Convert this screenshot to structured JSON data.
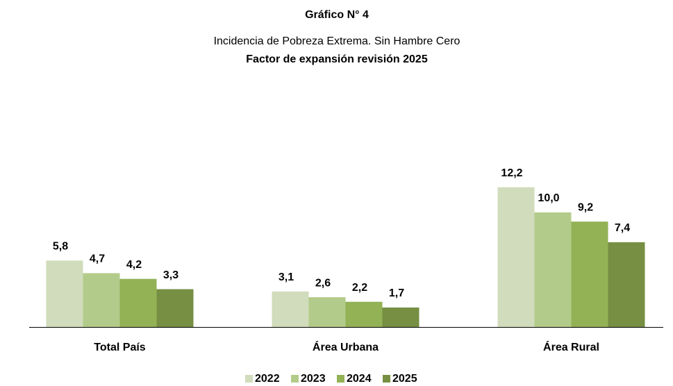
{
  "chart_data": {
    "type": "bar",
    "title": "Gráfico N° 4",
    "subtitle": [
      "Incidencia de Pobreza Extrema. Sin Hambre Cero",
      "Factor de expansión revisión 2025"
    ],
    "categories": [
      "Total País",
      "Área Urbana",
      "Área Rural"
    ],
    "series": [
      {
        "name": "2022",
        "color": "#d0dcbb",
        "values": [
          5.8,
          3.1,
          12.2
        ],
        "value_labels": [
          "5,8",
          "3,1",
          "12,2"
        ]
      },
      {
        "name": "2023",
        "color": "#b3cb8a",
        "values": [
          4.7,
          2.6,
          10.0
        ],
        "value_labels": [
          "4,7",
          "2,6",
          "10,0"
        ]
      },
      {
        "name": "2024",
        "color": "#92b255",
        "values": [
          4.2,
          2.2,
          9.2
        ],
        "value_labels": [
          "4,2",
          "2,2",
          "9,2"
        ]
      },
      {
        "name": "2025",
        "color": "#768f43",
        "values": [
          3.3,
          1.7,
          7.4
        ],
        "value_labels": [
          "3,3",
          "1,7",
          "7,4"
        ]
      }
    ],
    "ylim": [
      0,
      14
    ],
    "legend": "bottom"
  }
}
